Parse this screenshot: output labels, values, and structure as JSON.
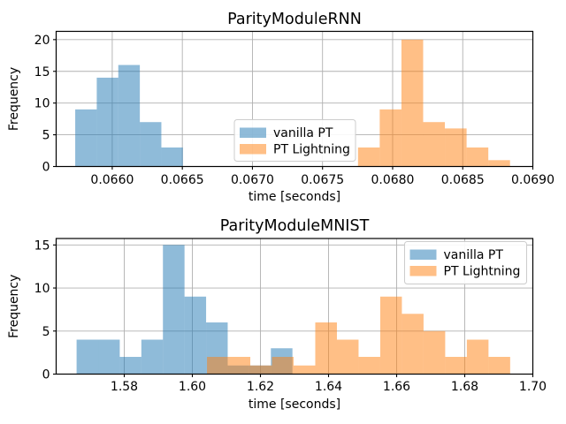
{
  "figure": {
    "background": "#ffffff"
  },
  "colors": {
    "vanilla_pt": "#1f77b4",
    "pt_lightning": "#ff7f0e",
    "fill_alpha": 0.5,
    "grid": "#b0b0b0",
    "spine": "#000000",
    "tick": "#000000",
    "text": "#000000",
    "legend_border": "#cccccc",
    "legend_bg": "#ffffff"
  },
  "legend_labels": [
    "vanilla PT",
    "PT Lightning"
  ],
  "chart_data": [
    {
      "id": "rnn",
      "type": "histogram",
      "title": "ParityModuleRNN",
      "xlabel": "time [seconds]",
      "ylabel": "Frequency",
      "xlim": [
        0.0656,
        0.069
      ],
      "ylim": [
        0,
        21.3
      ],
      "grid": true,
      "legend_position": "lower-center",
      "xticks": {
        "values": [
          0.066,
          0.0665,
          0.067,
          0.0675,
          0.068,
          0.0685,
          0.069
        ],
        "labels": [
          "0.0660",
          "0.0665",
          "0.0670",
          "0.0675",
          "0.0680",
          "0.0685",
          "0.0690"
        ]
      },
      "yticks": {
        "values": [
          0,
          5,
          10,
          15,
          20
        ],
        "labels": [
          "0",
          "5",
          "10",
          "15",
          "20"
        ]
      },
      "series": [
        {
          "name": "vanilla PT",
          "color_key": "vanilla_pt",
          "bin_start": 0.065736,
          "bin_width": 0.0001536,
          "counts": [
            9,
            14,
            16,
            7,
            3
          ]
        },
        {
          "name": "PT Lightning",
          "color_key": "pt_lightning",
          "bin_start": 0.067753,
          "bin_width": 0.0001549,
          "counts": [
            3,
            9,
            20,
            7,
            6,
            3,
            1
          ]
        }
      ]
    },
    {
      "id": "mnist",
      "type": "histogram",
      "title": "ParityModuleMNIST",
      "xlabel": "time [seconds]",
      "ylabel": "Frequency",
      "xlim": [
        1.56,
        1.7
      ],
      "ylim": [
        0,
        15.75
      ],
      "grid": true,
      "legend_position": "upper-right",
      "xticks": {
        "values": [
          1.58,
          1.6,
          1.62,
          1.64,
          1.66,
          1.68,
          1.7
        ],
        "labels": [
          "1.58",
          "1.60",
          "1.62",
          "1.64",
          "1.66",
          "1.68",
          "1.70"
        ]
      },
      "yticks": {
        "values": [
          0,
          5,
          10,
          15
        ],
        "labels": [
          "0",
          "5",
          "10",
          "15"
        ]
      },
      "series": [
        {
          "name": "vanilla PT",
          "color_key": "vanilla_pt",
          "bin_start": 1.566,
          "bin_width": 0.00634,
          "counts": [
            4,
            4,
            2,
            4,
            15,
            9,
            6,
            1,
            1,
            3
          ]
        },
        {
          "name": "PT Lightning",
          "color_key": "pt_lightning",
          "bin_start": 1.6043,
          "bin_width": 0.00636,
          "counts": [
            2,
            2,
            1,
            2,
            1,
            6,
            4,
            2,
            9,
            7,
            5,
            2,
            4,
            2
          ]
        }
      ]
    }
  ]
}
